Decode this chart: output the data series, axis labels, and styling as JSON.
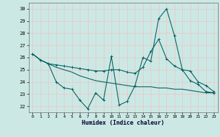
{
  "xlabel": "Humidex (Indice chaleur)",
  "background_color": "#cce8e4",
  "grid_color": "#e8c8c8",
  "line_color": "#006060",
  "xlim": [
    -0.5,
    23.5
  ],
  "ylim": [
    21.5,
    30.5
  ],
  "yticks": [
    22,
    23,
    24,
    25,
    26,
    27,
    28,
    29,
    30
  ],
  "xticks": [
    0,
    1,
    2,
    3,
    4,
    5,
    6,
    7,
    8,
    9,
    10,
    11,
    12,
    13,
    14,
    15,
    16,
    17,
    18,
    19,
    20,
    21,
    22,
    23
  ],
  "line1_x": [
    0,
    1,
    2,
    3,
    4,
    5,
    6,
    7,
    8,
    9,
    10,
    11,
    12,
    13,
    14,
    15,
    16,
    17,
    18,
    19,
    20,
    21,
    22,
    23
  ],
  "line1_y": [
    26.3,
    25.8,
    25.5,
    24.0,
    23.5,
    23.4,
    22.5,
    21.8,
    23.1,
    22.5,
    26.1,
    22.1,
    22.4,
    23.7,
    26.0,
    25.7,
    29.2,
    30.0,
    27.8,
    25.0,
    24.1,
    23.8,
    23.2,
    23.1
  ],
  "line2_x": [
    0,
    1,
    2,
    3,
    4,
    5,
    6,
    7,
    8,
    9,
    10,
    11,
    12,
    13,
    14,
    15,
    16,
    17,
    18,
    19,
    20,
    21,
    22,
    23
  ],
  "line2_y": [
    26.3,
    25.8,
    25.5,
    25.4,
    25.3,
    25.2,
    25.1,
    25.0,
    24.9,
    24.9,
    25.0,
    25.0,
    24.8,
    24.7,
    25.2,
    26.5,
    27.5,
    25.9,
    25.3,
    25.0,
    24.9,
    24.0,
    23.7,
    23.2
  ],
  "line3_x": [
    0,
    1,
    2,
    3,
    4,
    5,
    6,
    7,
    8,
    9,
    10,
    11,
    12,
    13,
    14,
    15,
    16,
    17,
    18,
    19,
    20,
    21,
    22,
    23
  ],
  "line3_y": [
    26.3,
    25.8,
    25.5,
    25.2,
    25.0,
    24.8,
    24.5,
    24.3,
    24.1,
    24.0,
    23.9,
    23.8,
    23.7,
    23.6,
    23.6,
    23.6,
    23.5,
    23.5,
    23.4,
    23.4,
    23.3,
    23.2,
    23.1,
    23.1
  ]
}
